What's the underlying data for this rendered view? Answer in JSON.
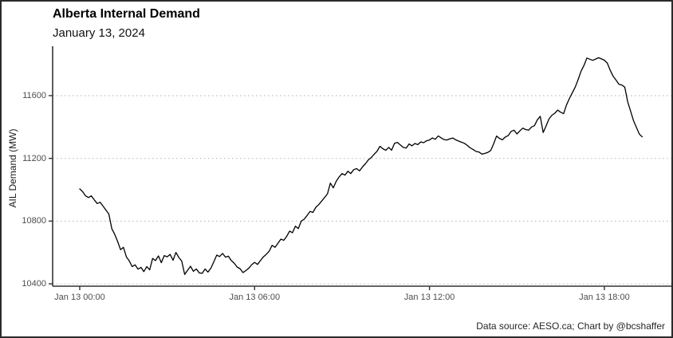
{
  "chart": {
    "title": "Alberta Internal Demand",
    "subtitle": "January 13, 2024",
    "y_axis_label": "AIL Demand (MW)",
    "caption": "Data source: AESO.ca; Chart by @bcshaffer"
  },
  "colors": {
    "background": "#ffffff",
    "border": "#2b2b2b",
    "line": "#000000",
    "grid": "#c2c2c2",
    "axis": "#333333",
    "tick_text": "#4d4d4d"
  },
  "chart_data": {
    "type": "line",
    "title": "Alberta Internal Demand",
    "subtitle": "January 13, 2024",
    "xlabel": "",
    "ylabel": "AIL Demand (MW)",
    "caption": "Data source: AESO.ca; Chart by @bcshaffer",
    "grid": "horizontal-dotted-major-y",
    "legend": "none",
    "x_unit": "hours since Jan 13 00:00",
    "y_unit": "MW",
    "ylim": [
      10385,
      11915
    ],
    "xlim": [
      -0.93,
      20.3
    ],
    "y_ticks": [
      10400,
      10800,
      11200,
      11600
    ],
    "x_ticks": [
      {
        "hours": 0,
        "label": "Jan 13 00:00"
      },
      {
        "hours": 6,
        "label": "Jan 13 06:00"
      },
      {
        "hours": 12,
        "label": "Jan 13 12:00"
      },
      {
        "hours": 18,
        "label": "Jan 13 18:00"
      }
    ],
    "series": [
      {
        "name": "AIL Demand",
        "t_start_hours": 0.0,
        "t_step_hours": 0.1,
        "values_mw": [
          11005,
          10988,
          10961,
          10950,
          10961,
          10935,
          10912,
          10920,
          10896,
          10870,
          10845,
          10752,
          10715,
          10670,
          10618,
          10633,
          10572,
          10546,
          10510,
          10521,
          10494,
          10505,
          10478,
          10510,
          10489,
          10562,
          10548,
          10578,
          10535,
          10580,
          10572,
          10588,
          10550,
          10600,
          10568,
          10545,
          10460,
          10486,
          10512,
          10480,
          10495,
          10470,
          10467,
          10495,
          10475,
          10500,
          10540,
          10583,
          10574,
          10594,
          10570,
          10576,
          10548,
          10532,
          10507,
          10497,
          10472,
          10484,
          10500,
          10522,
          10537,
          10524,
          10548,
          10572,
          10588,
          10608,
          10645,
          10633,
          10658,
          10685,
          10678,
          10702,
          10736,
          10726,
          10768,
          10752,
          10800,
          10812,
          10836,
          10862,
          10855,
          10888,
          10905,
          10928,
          10950,
          10974,
          11042,
          11012,
          11055,
          11082,
          11103,
          11093,
          11118,
          11103,
          11128,
          11135,
          11120,
          11145,
          11165,
          11190,
          11205,
          11226,
          11245,
          11277,
          11262,
          11251,
          11270,
          11252,
          11296,
          11302,
          11285,
          11270,
          11266,
          11292,
          11280,
          11295,
          11288,
          11305,
          11300,
          11312,
          11317,
          11330,
          11322,
          11343,
          11331,
          11320,
          11317,
          11325,
          11330,
          11318,
          11310,
          11303,
          11296,
          11282,
          11267,
          11256,
          11244,
          11240,
          11227,
          11232,
          11238,
          11250,
          11292,
          11342,
          11328,
          11318,
          11336,
          11345,
          11372,
          11380,
          11356,
          11375,
          11393,
          11384,
          11380,
          11400,
          11408,
          11446,
          11468,
          11365,
          11406,
          11452,
          11475,
          11488,
          11508,
          11494,
          11485,
          11540,
          11582,
          11618,
          11655,
          11702,
          11756,
          11792,
          11840,
          11832,
          11825,
          11833,
          11842,
          11834,
          11826,
          11808,
          11762,
          11724,
          11699,
          11672,
          11668,
          11654,
          11560,
          11502,
          11440,
          11398,
          11355,
          11337
        ]
      }
    ]
  }
}
